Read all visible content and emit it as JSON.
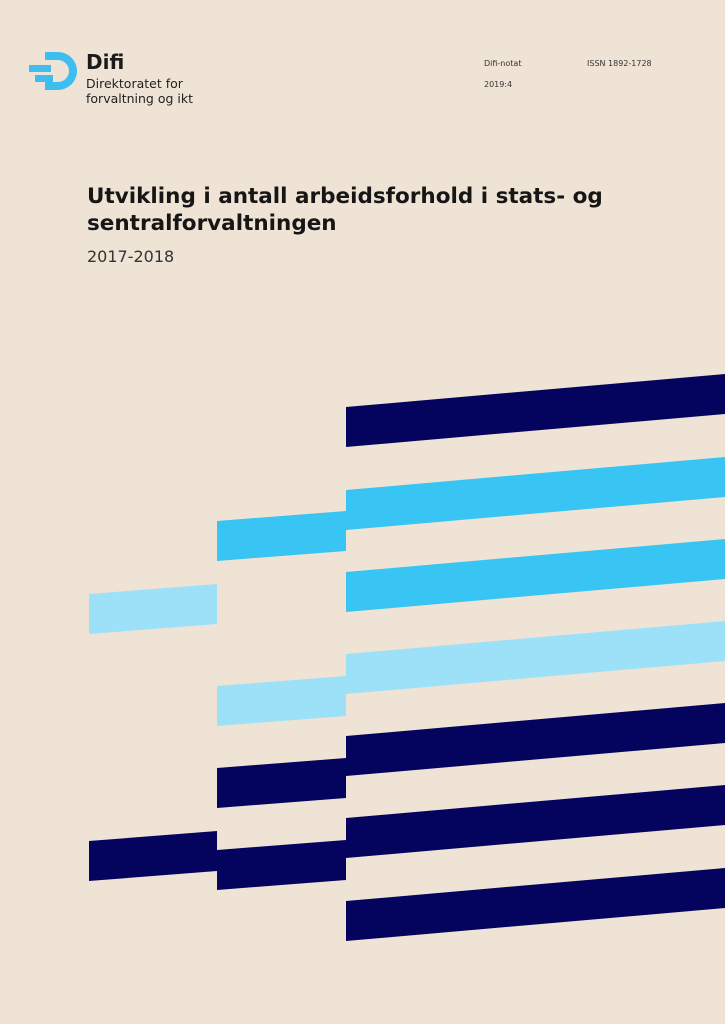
{
  "header": {
    "brand": "Difi",
    "tagline_line1": "Direktoratet for",
    "tagline_line2": "forvaltning og ikt",
    "series_label": "Difi-notat",
    "series_number": "2019:4",
    "issn": "ISSN 1892-1728"
  },
  "document": {
    "title": "Utvikling i antall arbeidsforhold i stats- og sentralforvaltningen",
    "subtitle": "2017-2018"
  },
  "colors": {
    "background": "#efe3d5",
    "logo": "#3dbdf0",
    "navy": "#04045f",
    "blue": "#38c5f3",
    "light_blue": "#9de1f8"
  },
  "icons": [
    "difi-logo-icon"
  ]
}
